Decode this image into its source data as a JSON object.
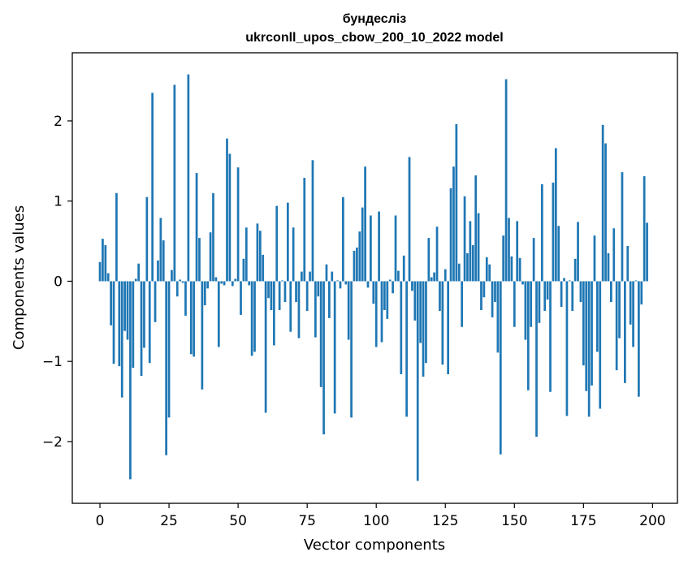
{
  "chart_data": {
    "type": "bar",
    "title_line1": "бундесліз",
    "title_line2": "ukrconll_upos_cbow_200_10_2022 model",
    "xlabel": "Vector components",
    "ylabel": "Components values",
    "xlim": [
      -10,
      209
    ],
    "ylim": [
      -2.77,
      2.85
    ],
    "xticks": [
      0,
      25,
      50,
      75,
      100,
      125,
      150,
      175,
      200
    ],
    "yticks": [
      -2,
      -1,
      0,
      1,
      2
    ],
    "ytick_labels": [
      "−2",
      "−1",
      "0",
      "1",
      "2"
    ],
    "bar_color": "#1f77b4",
    "grid": false,
    "values": [
      0.24,
      0.53,
      0.45,
      0.1,
      -0.55,
      -1.03,
      1.1,
      -1.06,
      -1.45,
      -0.62,
      -0.73,
      -2.47,
      -1.08,
      0.03,
      0.22,
      -1.18,
      -0.83,
      1.05,
      -1.02,
      2.35,
      -0.51,
      0.26,
      0.79,
      0.51,
      -2.17,
      -1.7,
      0.14,
      2.45,
      -0.19,
      0.02,
      -0.02,
      -0.43,
      2.58,
      -0.91,
      -0.94,
      1.35,
      0.54,
      -1.35,
      -0.3,
      -0.09,
      0.61,
      1.1,
      0.05,
      -0.82,
      -0.03,
      -0.05,
      1.78,
      1.59,
      -0.06,
      0.03,
      1.42,
      -0.42,
      0.28,
      0.67,
      -0.05,
      -0.93,
      -0.88,
      0.72,
      0.63,
      0.33,
      -1.64,
      -0.21,
      -0.36,
      -0.8,
      0.94,
      -0.36,
      0.01,
      -0.26,
      0.98,
      -0.63,
      0.67,
      -0.26,
      -0.71,
      0.12,
      1.29,
      -0.37,
      0.12,
      1.51,
      -0.7,
      -0.19,
      -1.32,
      -1.91,
      0.21,
      -0.46,
      0.12,
      -1.65,
      0.01,
      -0.09,
      1.05,
      -0.04,
      -0.73,
      -1.7,
      0.38,
      0.42,
      0.62,
      0.92,
      1.43,
      -0.08,
      0.82,
      -0.28,
      -0.82,
      0.87,
      -0.76,
      -0.36,
      -0.47,
      0.02,
      -0.15,
      0.82,
      0.13,
      -1.16,
      0.32,
      -1.69,
      1.55,
      -0.12,
      -0.49,
      -2.49,
      -0.77,
      -1.19,
      -1.02,
      0.54,
      0.05,
      0.11,
      0.68,
      -0.37,
      -1.04,
      0.15,
      -1.16,
      1.16,
      1.43,
      1.96,
      0.22,
      -0.57,
      1.06,
      0.35,
      0.75,
      0.45,
      1.32,
      0.85,
      -0.36,
      -0.2,
      0.3,
      0.21,
      -0.45,
      -0.26,
      -0.89,
      -2.16,
      0.57,
      2.52,
      0.79,
      0.31,
      -0.57,
      0.75,
      0.29,
      -0.04,
      -0.73,
      -1.36,
      -0.57,
      0.54,
      -1.94,
      -0.52,
      1.21,
      -0.37,
      -0.23,
      -1.38,
      1.23,
      1.66,
      0.69,
      -0.32,
      0.04,
      -1.68,
      0.01,
      -0.37,
      0.28,
      0.74,
      -0.26,
      -1.05,
      -1.37,
      -1.69,
      -1.3,
      0.57,
      -0.88,
      -1.59,
      1.95,
      1.72,
      0.35,
      -0.26,
      0.66,
      -1.11,
      -0.71,
      1.36,
      -1.27,
      0.44,
      -0.54,
      -0.82,
      0.01,
      -1.44,
      -0.29,
      1.31,
      0.73
    ]
  }
}
